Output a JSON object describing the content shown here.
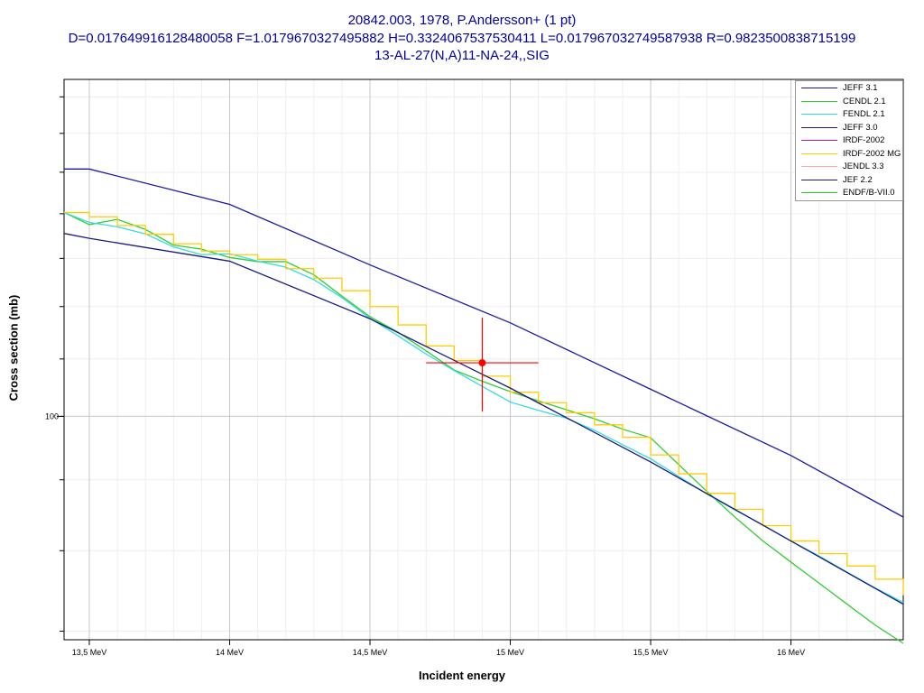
{
  "chart_data": {
    "type": "line",
    "title": "20842.003, 1978, P.Andersson+ (1 pt)",
    "subtitle": "D=0.017649916128480058 F=1.0179670327495882 H=0.3324067537530411 L=0.017967032749587938 R=0.9823500838715199",
    "subtitle2": "13-AL-27(N,A)11-NA-24,,SIG",
    "xlabel": "Incident energy",
    "ylabel": "Cross section (mb)",
    "x_unit": "MeV",
    "x_ticks": [
      {
        "value": 13.5,
        "label": "13,5 MeV"
      },
      {
        "value": 14.0,
        "label": "14 MeV"
      },
      {
        "value": 14.5,
        "label": "14,5 MeV"
      },
      {
        "value": 15.0,
        "label": "15 MeV"
      },
      {
        "value": 15.5,
        "label": "15,5 MeV"
      },
      {
        "value": 16.0,
        "label": "16 MeV"
      }
    ],
    "y_ticks": [
      {
        "value": 100,
        "label": "100"
      }
    ],
    "xlim": [
      13.41,
      16.4
    ],
    "ylim": [
      69,
      175
    ],
    "y_scale": "log",
    "grid": true,
    "legend_position": "top-right",
    "series": [
      {
        "name": "JEFF 3.1",
        "color": "#1a1aa0",
        "step": false,
        "points": [
          [
            13.41,
            150.8
          ],
          [
            13.5,
            150.8
          ],
          [
            14.0,
            142.2
          ],
          [
            14.5,
            128.6
          ],
          [
            15.0,
            116.8
          ],
          [
            15.5,
            104.6
          ],
          [
            16.0,
            93.7
          ],
          [
            16.4,
            84.6
          ]
        ]
      },
      {
        "name": "CENDL 2.1",
        "color": "#33cc33",
        "step": false,
        "points": [
          [
            13.41,
            140.3
          ],
          [
            13.5,
            137.5
          ],
          [
            13.6,
            138.7
          ],
          [
            13.7,
            136.4
          ],
          [
            13.8,
            132.9
          ],
          [
            13.9,
            132.0
          ],
          [
            14.0,
            130.2
          ],
          [
            14.1,
            129.3
          ],
          [
            14.2,
            129.3
          ],
          [
            14.3,
            126.5
          ],
          [
            14.4,
            122.1
          ],
          [
            14.5,
            118.0
          ],
          [
            14.6,
            115.0
          ],
          [
            14.7,
            111.5
          ],
          [
            14.8,
            108.0
          ],
          [
            14.9,
            106.0
          ],
          [
            15.0,
            104.2
          ],
          [
            15.1,
            102.6
          ],
          [
            15.2,
            101.1
          ],
          [
            15.3,
            99.6
          ],
          [
            15.4,
            97.9
          ],
          [
            15.5,
            96.5
          ],
          [
            15.6,
            92.3
          ],
          [
            15.7,
            88.3
          ],
          [
            15.8,
            84.6
          ],
          [
            15.9,
            81.3
          ],
          [
            16.0,
            78.5
          ],
          [
            16.1,
            75.8
          ],
          [
            16.2,
            73.2
          ],
          [
            16.3,
            70.7
          ],
          [
            16.4,
            68.6
          ]
        ]
      },
      {
        "name": "FENDL 2.1",
        "color": "#33dddd",
        "step": false,
        "points": [
          [
            13.41,
            140.3
          ],
          [
            13.5,
            138.0
          ],
          [
            13.6,
            137.0
          ],
          [
            13.7,
            135.4
          ],
          [
            13.8,
            132.5
          ],
          [
            13.9,
            130.8
          ],
          [
            14.0,
            131.0
          ],
          [
            14.1,
            129.4
          ],
          [
            14.2,
            128.1
          ],
          [
            14.3,
            125.5
          ],
          [
            14.4,
            121.8
          ],
          [
            14.5,
            117.7
          ],
          [
            14.6,
            114.3
          ],
          [
            14.7,
            110.9
          ],
          [
            14.8,
            107.9
          ],
          [
            14.9,
            105.1
          ],
          [
            15.0,
            102.4
          ],
          [
            15.1,
            101.0
          ],
          [
            15.2,
            99.7
          ],
          [
            15.3,
            97.7
          ],
          [
            15.4,
            95.4
          ],
          [
            15.5,
            93.2
          ],
          [
            15.6,
            90.5
          ],
          [
            15.7,
            87.9
          ],
          [
            15.8,
            85.6
          ],
          [
            15.9,
            83.5
          ],
          [
            16.0,
            81.3
          ],
          [
            16.1,
            79.3
          ],
          [
            16.2,
            77.2
          ],
          [
            16.3,
            75.2
          ],
          [
            16.4,
            73.4
          ]
        ]
      },
      {
        "name": "JEFF 3.0",
        "color": "#1a1a6a",
        "step": false,
        "points": []
      },
      {
        "name": "IRDF-2002",
        "color": "#aa22aa",
        "step": false,
        "points": []
      },
      {
        "name": "IRDF-2002 MG",
        "color": "#ffcc00",
        "step": true,
        "points": [
          [
            13.41,
            140.3
          ],
          [
            13.5,
            139.3
          ],
          [
            13.6,
            137.3
          ],
          [
            13.7,
            135.3
          ],
          [
            13.8,
            133.2
          ],
          [
            13.9,
            131.6
          ],
          [
            14.0,
            130.8
          ],
          [
            14.1,
            129.8
          ],
          [
            14.2,
            127.8
          ],
          [
            14.3,
            125.8
          ],
          [
            14.4,
            123.2
          ],
          [
            14.5,
            120.0
          ],
          [
            14.6,
            116.4
          ],
          [
            14.7,
            112.4
          ],
          [
            14.8,
            109.7
          ],
          [
            14.9,
            106.9
          ],
          [
            15.0,
            104.1
          ],
          [
            15.1,
            102.3
          ],
          [
            15.2,
            100.6
          ],
          [
            15.3,
            98.6
          ],
          [
            15.4,
            96.6
          ],
          [
            15.5,
            93.8
          ],
          [
            15.6,
            90.9
          ],
          [
            15.7,
            88.0
          ],
          [
            15.8,
            85.7
          ],
          [
            15.9,
            83.4
          ],
          [
            16.0,
            81.3
          ],
          [
            16.1,
            79.6
          ],
          [
            16.2,
            78.0
          ],
          [
            16.3,
            76.3
          ],
          [
            16.4,
            74.3
          ]
        ]
      },
      {
        "name": "JENDL 3.3",
        "color": "#ffaaaa",
        "step": false,
        "points": []
      },
      {
        "name": "JEF 2.2",
        "color": "#1a1a80",
        "step": false,
        "points": [
          [
            13.41,
            135.5
          ],
          [
            13.5,
            134.4
          ],
          [
            14.0,
            129.4
          ],
          [
            14.5,
            117.6
          ],
          [
            15.0,
            104.8
          ],
          [
            15.5,
            92.7
          ],
          [
            16.0,
            81.3
          ],
          [
            16.4,
            73.2
          ]
        ]
      },
      {
        "name": "ENDF/B-VII.0",
        "color": "#22cc22",
        "step": false,
        "points": []
      }
    ],
    "experimental_points": [
      {
        "x": 14.9,
        "y": 109.3,
        "x_err": 0.2,
        "y_err": 8.5,
        "color": "#ff0000"
      }
    ]
  }
}
